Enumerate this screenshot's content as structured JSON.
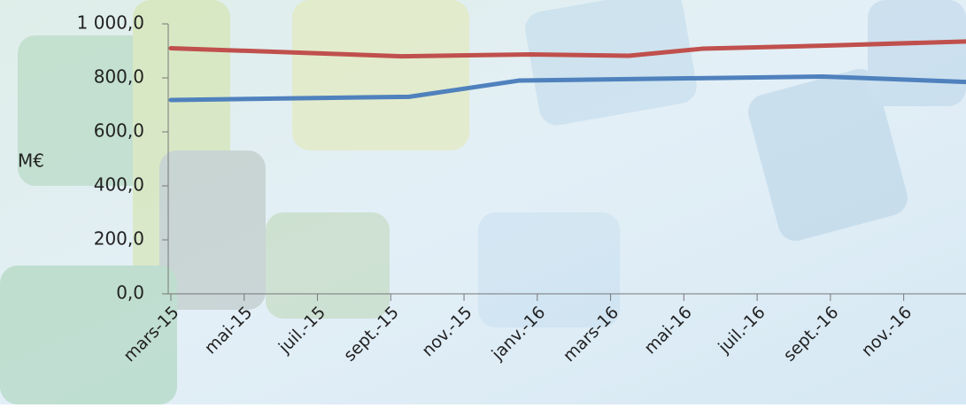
{
  "chart_data": {
    "type": "line",
    "y_label": "M€",
    "xlim": [
      0,
      21.7
    ],
    "xticks": [
      {
        "value": 0,
        "label": "mars-15"
      },
      {
        "value": 2,
        "label": "mai-15"
      },
      {
        "value": 4,
        "label": "juil.-15"
      },
      {
        "value": 6,
        "label": "sept.-15"
      },
      {
        "value": 8,
        "label": "nov.-15"
      },
      {
        "value": 10,
        "label": "janv.-16"
      },
      {
        "value": 12,
        "label": "mars-16"
      },
      {
        "value": 14,
        "label": "mai-16"
      },
      {
        "value": 16,
        "label": "juil.-16"
      },
      {
        "value": 18,
        "label": "sept.-16"
      },
      {
        "value": 20,
        "label": "nov.-16"
      }
    ],
    "ylim": [
      0,
      1000
    ],
    "yticks": [
      {
        "value": 0,
        "label": "0,0"
      },
      {
        "value": 200,
        "label": "200,0"
      },
      {
        "value": 400,
        "label": "400,0"
      },
      {
        "value": 600,
        "label": "600,0"
      },
      {
        "value": 800,
        "label": "800,0"
      },
      {
        "value": 1000,
        "label": "1 000,0"
      }
    ],
    "series": [
      {
        "color": "#c0504d",
        "x": [
          0,
          6.3,
          9.8,
          12.5,
          14.5,
          18,
          21.7
        ],
        "values": [
          910,
          880,
          887,
          882,
          908,
          920,
          935
        ]
      },
      {
        "color": "#4f81bd",
        "x": [
          0,
          6.5,
          9.5,
          17.8,
          21.7
        ],
        "values": [
          718,
          730,
          790,
          805,
          785
        ]
      }
    ]
  }
}
